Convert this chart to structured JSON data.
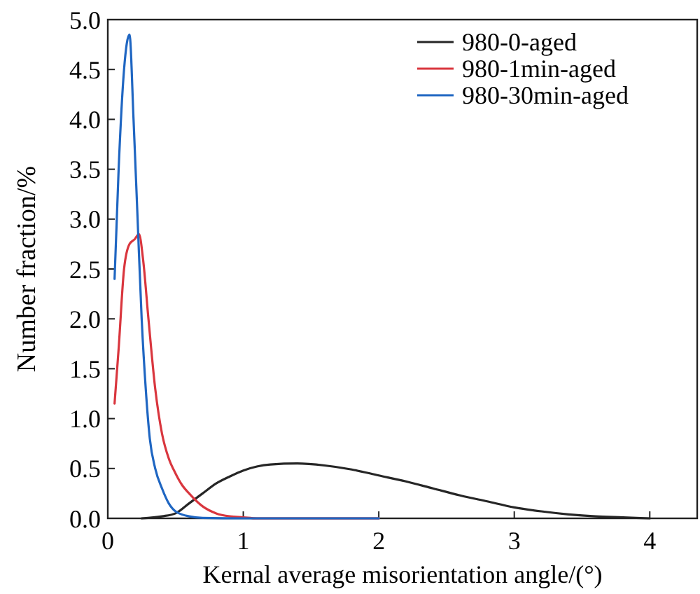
{
  "chart_data": {
    "type": "line",
    "xlabel": "Kernal average misorientation angle/(°)",
    "ylabel": "Number fraction/%",
    "xlim": [
      0,
      4.35
    ],
    "xticks": [
      0,
      1,
      2,
      3,
      4
    ],
    "ylim": [
      0,
      5
    ],
    "yticks": [
      {
        "value": 0,
        "label": "0.0"
      },
      {
        "value": 0.5,
        "label": "0.5"
      },
      {
        "value": 1,
        "label": "1.0"
      },
      {
        "value": 1.5,
        "label": "1.5"
      },
      {
        "value": 2,
        "label": "2.0"
      },
      {
        "value": 2.5,
        "label": "2.5"
      },
      {
        "value": 3,
        "label": "3.0"
      },
      {
        "value": 3.5,
        "label": "3.5"
      },
      {
        "value": 4,
        "label": "4.0"
      },
      {
        "value": 4.5,
        "label": "4.5"
      },
      {
        "value": 5,
        "label": "5.0"
      }
    ],
    "grid": false,
    "legend": "top right",
    "marker": "none",
    "line_style": "solid",
    "series": [
      {
        "name": "980-0-aged",
        "color": "#262626",
        "x": [
          0.25,
          0.4,
          0.5,
          0.6,
          0.7,
          0.8,
          0.9,
          1.0,
          1.1,
          1.2,
          1.4,
          1.6,
          1.8,
          2.0,
          2.2,
          2.4,
          2.6,
          2.8,
          3.0,
          3.2,
          3.4,
          3.6,
          3.8,
          4.0
        ],
        "values": [
          0,
          0.02,
          0.05,
          0.15,
          0.25,
          0.35,
          0.42,
          0.48,
          0.52,
          0.54,
          0.55,
          0.53,
          0.49,
          0.43,
          0.37,
          0.3,
          0.23,
          0.17,
          0.11,
          0.07,
          0.04,
          0.02,
          0.01,
          0
        ]
      },
      {
        "name": "980-1min-aged",
        "color": "#d9363e",
        "x": [
          0.05,
          0.08,
          0.12,
          0.16,
          0.2,
          0.23,
          0.26,
          0.3,
          0.35,
          0.4,
          0.45,
          0.5,
          0.55,
          0.6,
          0.7,
          0.8,
          0.9,
          1.0,
          1.1,
          2.0
        ],
        "values": [
          1.15,
          1.7,
          2.5,
          2.75,
          2.8,
          2.85,
          2.6,
          2.0,
          1.3,
          0.85,
          0.6,
          0.45,
          0.33,
          0.25,
          0.12,
          0.05,
          0.02,
          0.01,
          0,
          0
        ]
      },
      {
        "name": "980-30min-aged",
        "color": "#1f66c2",
        "x": [
          0.05,
          0.08,
          0.12,
          0.16,
          0.19,
          0.22,
          0.25,
          0.28,
          0.31,
          0.35,
          0.4,
          0.45,
          0.5,
          0.6,
          0.7,
          1.0,
          2.0
        ],
        "values": [
          2.4,
          3.5,
          4.5,
          4.85,
          4.0,
          3.0,
          2.0,
          1.3,
          0.8,
          0.5,
          0.3,
          0.15,
          0.07,
          0.02,
          0.005,
          0,
          0
        ]
      }
    ]
  }
}
